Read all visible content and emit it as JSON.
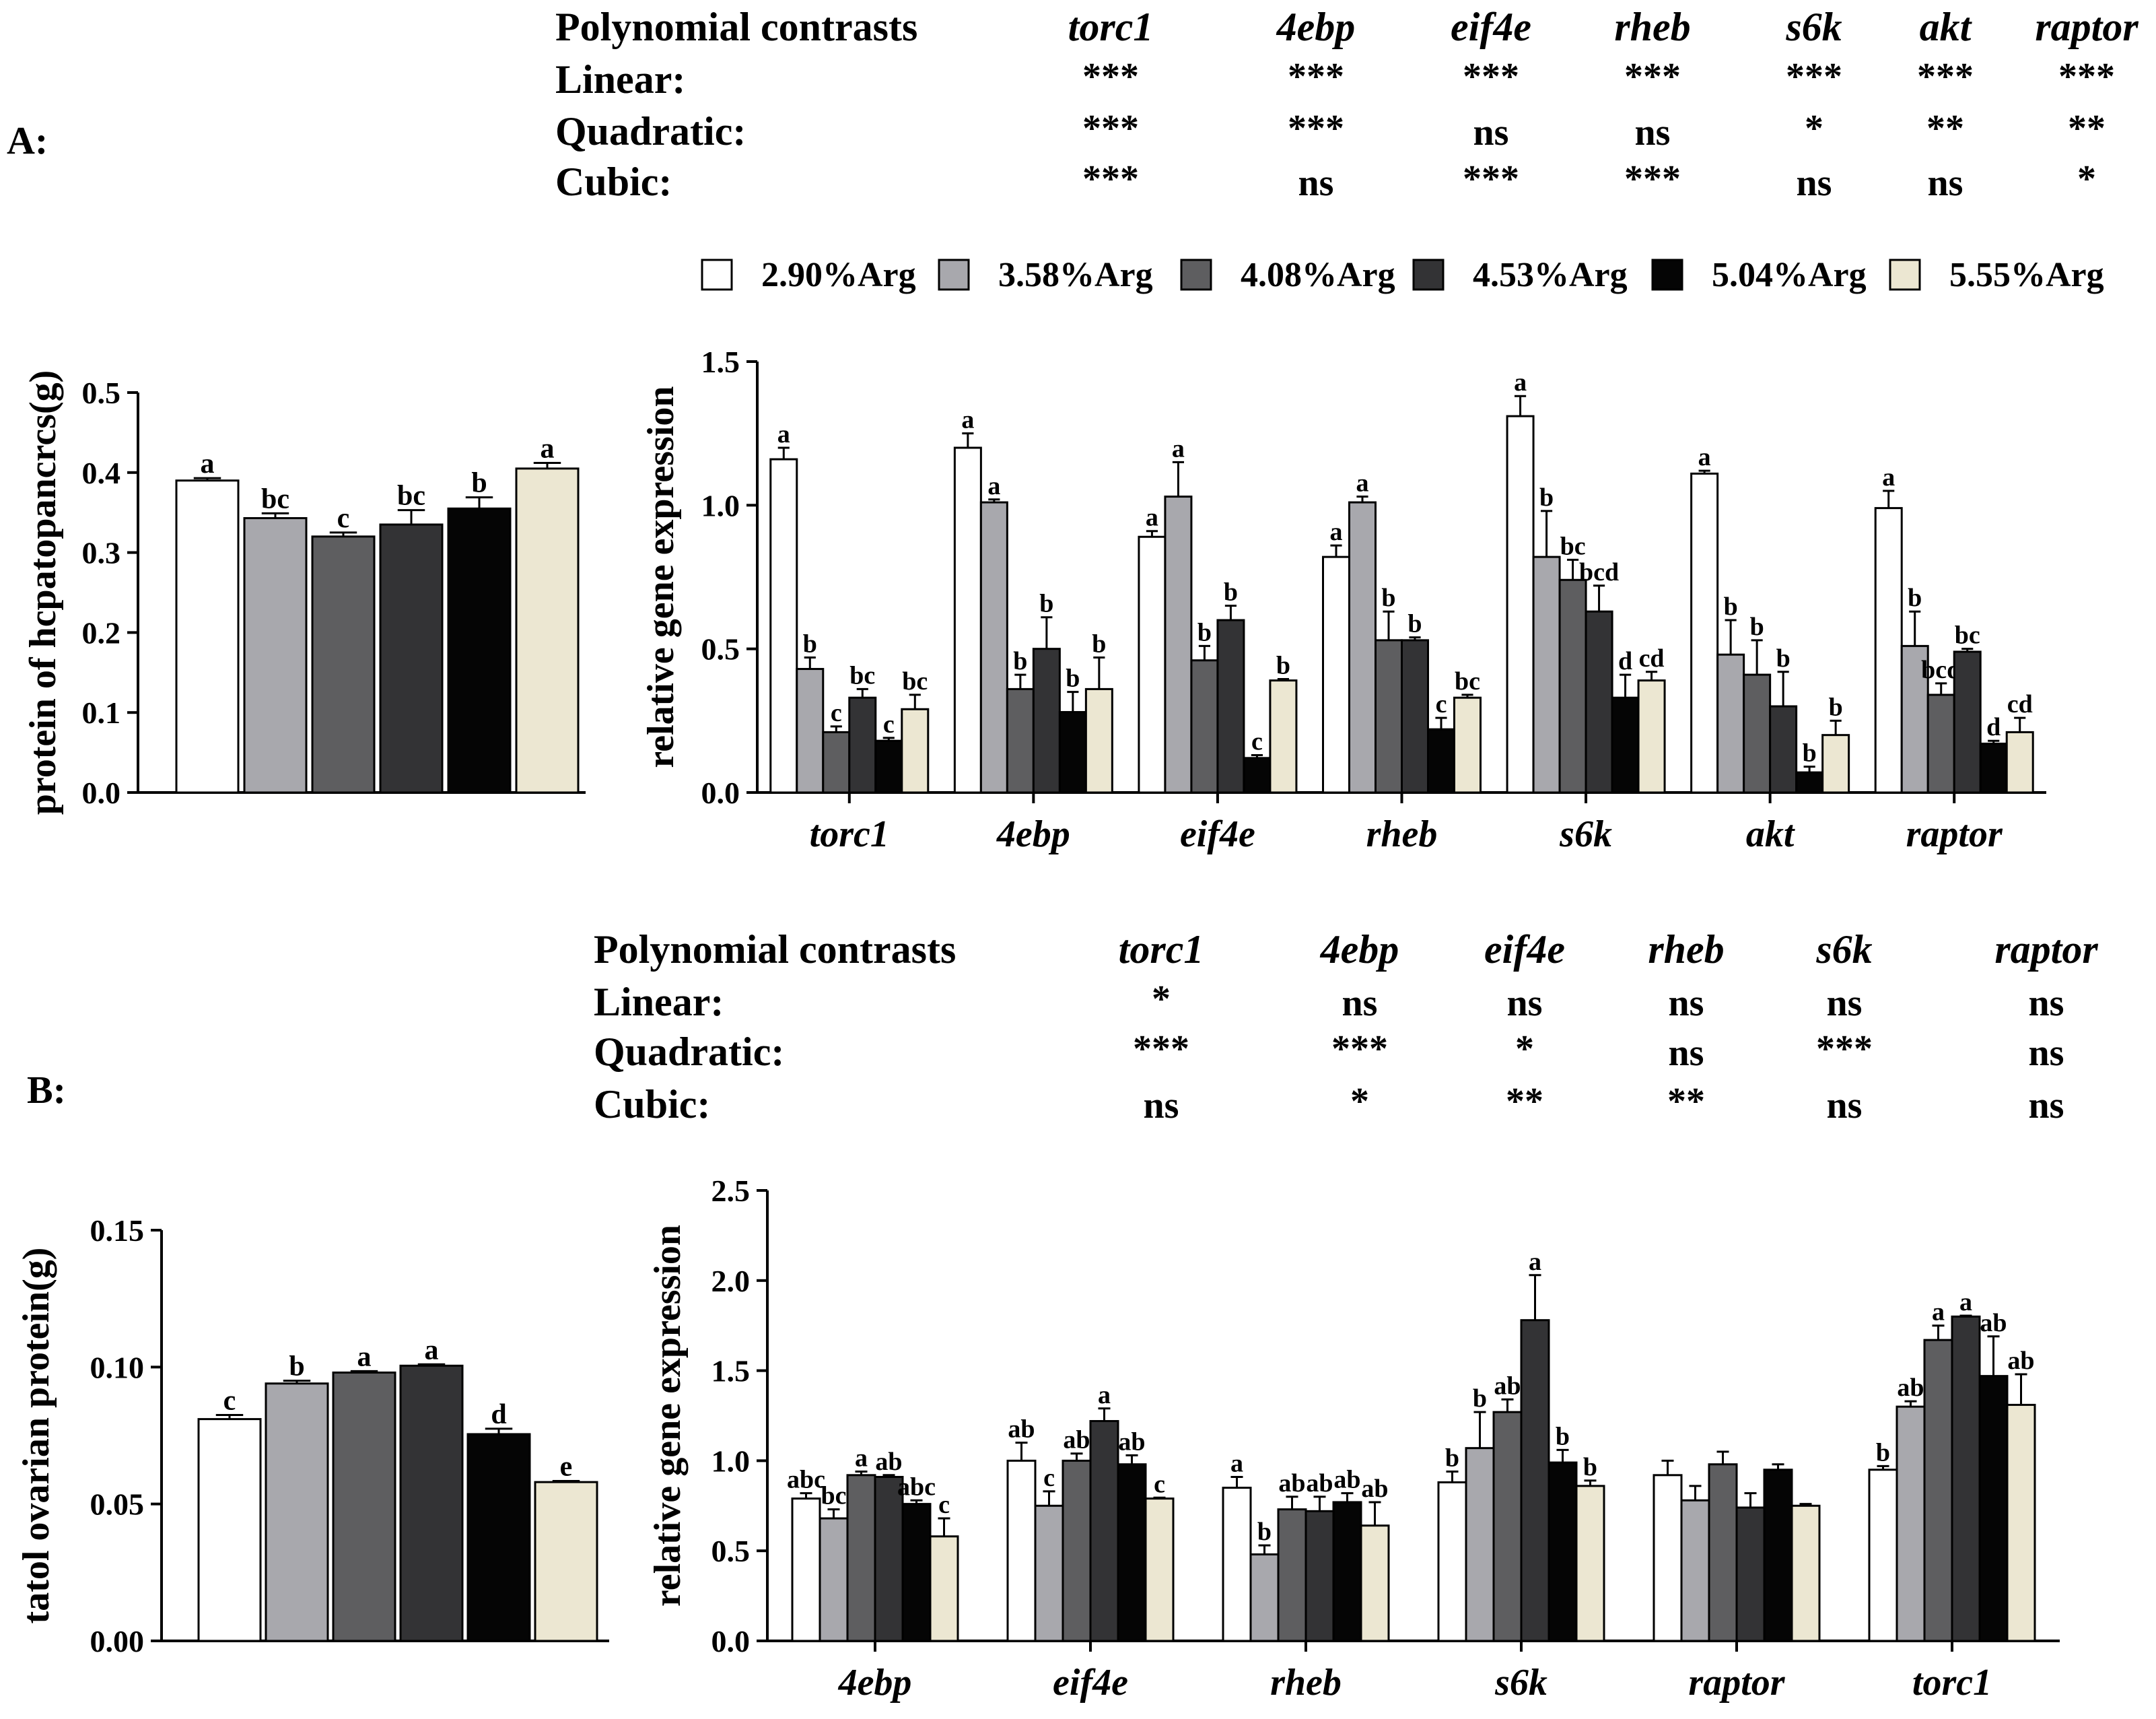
{
  "panel_labels": [
    "A:",
    "B:"
  ],
  "legend": {
    "entries": [
      "2.90%Arg",
      "3.58%Arg",
      "4.08%Arg",
      "4.53%Arg",
      "5.04%Arg",
      "5.55%Arg"
    ],
    "colors": [
      "#ffffff",
      "#a8a8ad",
      "#5e5e60",
      "#333335",
      "#050505",
      "#ece7d2"
    ]
  },
  "contrasts": [
    {
      "header": "Polynomial contrasts",
      "genes": [
        "torc1",
        "4ebp",
        "eif4e",
        "rheb",
        "s6k",
        "akt",
        "raptor"
      ],
      "rows": [
        {
          "label": "Linear:",
          "values": [
            "***",
            "***",
            "***",
            "***",
            "***",
            "***",
            "***"
          ]
        },
        {
          "label": "Quadratic:",
          "values": [
            "***",
            "***",
            "ns",
            "ns",
            "*",
            "**",
            "**"
          ]
        },
        {
          "label": "Cubic:",
          "values": [
            "***",
            "ns",
            "***",
            "***",
            "ns",
            "ns",
            "*"
          ]
        }
      ]
    },
    {
      "header": "Polynomial contrasts",
      "genes": [
        "torc1",
        "4ebp",
        "eif4e",
        "rheb",
        "s6k",
        "raptor"
      ],
      "rows": [
        {
          "label": "Linear:",
          "values": [
            "*",
            "ns",
            "ns",
            "ns",
            "ns",
            "ns"
          ]
        },
        {
          "label": "Quadratic:",
          "values": [
            "***",
            "***",
            "*",
            "ns",
            "***",
            "ns"
          ]
        },
        {
          "label": "Cubic:",
          "values": [
            "ns",
            "*",
            "**",
            "**",
            "ns",
            "ns"
          ]
        }
      ]
    }
  ],
  "chart_data": [
    {
      "type": "bar",
      "ylabel": "protein of hcpatopancrcs(g)",
      "ylim": [
        0,
        0.5
      ],
      "yticks": [
        "0.0",
        "0.1",
        "0.2",
        "0.3",
        "0.4",
        "0.5"
      ],
      "values": [
        0.39,
        0.343,
        0.32,
        0.335,
        0.355,
        0.405
      ],
      "errors": [
        0.003,
        0.006,
        0.005,
        0.018,
        0.014,
        0.007
      ],
      "letters": [
        "a",
        "bc",
        "c",
        "bc",
        "b",
        "a"
      ]
    },
    {
      "type": "bar",
      "ylabel": "relative gene expression",
      "ylim": [
        0,
        1.5
      ],
      "yticks": [
        "0.0",
        "0.5",
        "1.0",
        "1.5"
      ],
      "categories": [
        "torc1",
        "4ebp",
        "eif4e",
        "rheb",
        "s6k",
        "akt",
        "raptor"
      ],
      "series": [
        {
          "name": "2.90%Arg",
          "values": [
            1.16,
            1.2,
            0.89,
            0.82,
            1.31,
            1.11,
            0.99
          ],
          "errors": [
            0.04,
            0.05,
            0.02,
            0.04,
            0.07,
            0.01,
            0.06
          ],
          "letters": [
            "a",
            "a",
            "a",
            "a",
            "a",
            "a",
            "a"
          ]
        },
        {
          "name": "3.58%Arg",
          "values": [
            0.43,
            1.01,
            1.03,
            1.01,
            0.82,
            0.48,
            0.51
          ],
          "errors": [
            0.04,
            0.01,
            0.12,
            0.02,
            0.16,
            0.12,
            0.12
          ],
          "letters": [
            "b",
            "a",
            "a",
            "a",
            "b",
            "b",
            "b"
          ]
        },
        {
          "name": "4.08%Arg",
          "values": [
            0.21,
            0.36,
            0.46,
            0.53,
            0.74,
            0.41,
            0.34
          ],
          "errors": [
            0.02,
            0.05,
            0.05,
            0.1,
            0.07,
            0.12,
            0.04
          ],
          "letters": [
            "c",
            "b",
            "b",
            "b",
            "bc",
            "b",
            "bcd"
          ]
        },
        {
          "name": "4.53%Arg",
          "values": [
            0.33,
            0.5,
            0.6,
            0.53,
            0.63,
            0.3,
            0.49
          ],
          "errors": [
            0.03,
            0.11,
            0.05,
            0.01,
            0.09,
            0.12,
            0.01
          ],
          "letters": [
            "bc",
            "b",
            "b",
            "b",
            "bcd",
            "b",
            "bc"
          ]
        },
        {
          "name": "5.04%Arg",
          "values": [
            0.18,
            0.28,
            0.12,
            0.22,
            0.33,
            0.07,
            0.17
          ],
          "errors": [
            0.01,
            0.07,
            0.01,
            0.04,
            0.08,
            0.02,
            0.01
          ],
          "letters": [
            "c",
            "b",
            "c",
            "c",
            "d",
            "b",
            "d"
          ]
        },
        {
          "name": "5.55%Arg",
          "values": [
            0.29,
            0.36,
            0.39,
            0.33,
            0.39,
            0.2,
            0.21
          ],
          "errors": [
            0.05,
            0.11,
            0.005,
            0.01,
            0.03,
            0.05,
            0.05
          ],
          "letters": [
            "bc",
            "b",
            "b",
            "bc",
            "cd",
            "b",
            "cd"
          ]
        }
      ]
    },
    {
      "type": "bar",
      "ylabel": "tatol ovarian protein(g)",
      "ylim": [
        0,
        0.15
      ],
      "yticks": [
        "0.00",
        "0.05",
        "0.10",
        "0.15"
      ],
      "values": [
        0.081,
        0.094,
        0.098,
        0.1005,
        0.0755,
        0.058
      ],
      "errors": [
        0.0015,
        0.001,
        0.0005,
        0.0005,
        0.002,
        0.0004
      ],
      "letters": [
        "c",
        "b",
        "a",
        "a",
        "d",
        "e"
      ]
    },
    {
      "type": "bar",
      "ylabel": "relative gene expression",
      "ylim": [
        0,
        2.5
      ],
      "yticks": [
        "0.0",
        "0.5",
        "1.0",
        "1.5",
        "2.0",
        "2.5"
      ],
      "categories": [
        "4ebp",
        "eif4e",
        "rheb",
        "s6k",
        "raptor",
        "torc1"
      ],
      "series": [
        {
          "name": "2.90%Arg",
          "values": [
            0.79,
            1.0,
            0.85,
            0.88,
            0.92,
            0.95
          ],
          "errors": [
            0.03,
            0.1,
            0.06,
            0.06,
            0.08,
            0.02
          ],
          "letters": [
            "abc",
            "ab",
            "a",
            "b",
            "",
            "b"
          ]
        },
        {
          "name": "3.58%Arg",
          "values": [
            0.68,
            0.75,
            0.48,
            1.07,
            0.78,
            1.3
          ],
          "errors": [
            0.05,
            0.08,
            0.05,
            0.2,
            0.08,
            0.03
          ],
          "letters": [
            "bc",
            "c",
            "b",
            "b",
            "",
            "ab"
          ]
        },
        {
          "name": "4.08%Arg",
          "values": [
            0.92,
            1.0,
            0.73,
            1.27,
            0.98,
            1.67
          ],
          "errors": [
            0.02,
            0.04,
            0.07,
            0.07,
            0.07,
            0.08
          ],
          "letters": [
            "a",
            "ab",
            "ab",
            "ab",
            "",
            "a"
          ]
        },
        {
          "name": "4.53%Arg",
          "values": [
            0.91,
            1.22,
            0.72,
            1.78,
            0.74,
            1.8
          ],
          "errors": [
            0.01,
            0.07,
            0.08,
            0.25,
            0.08,
            0.005
          ],
          "letters": [
            "ab",
            "a",
            "ab",
            "a",
            "",
            "a"
          ]
        },
        {
          "name": "5.04%Arg",
          "values": [
            0.76,
            0.98,
            0.77,
            0.99,
            0.95,
            1.47
          ],
          "errors": [
            0.02,
            0.05,
            0.05,
            0.07,
            0.03,
            0.22
          ],
          "letters": [
            "abc",
            "ab",
            "ab",
            "b",
            "",
            "ab"
          ]
        },
        {
          "name": "5.55%Arg",
          "values": [
            0.58,
            0.79,
            0.64,
            0.86,
            0.75,
            1.31
          ],
          "errors": [
            0.1,
            0.005,
            0.13,
            0.03,
            0.01,
            0.17
          ],
          "letters": [
            "c",
            "c",
            "ab",
            "b",
            "",
            "ab"
          ]
        }
      ]
    }
  ]
}
